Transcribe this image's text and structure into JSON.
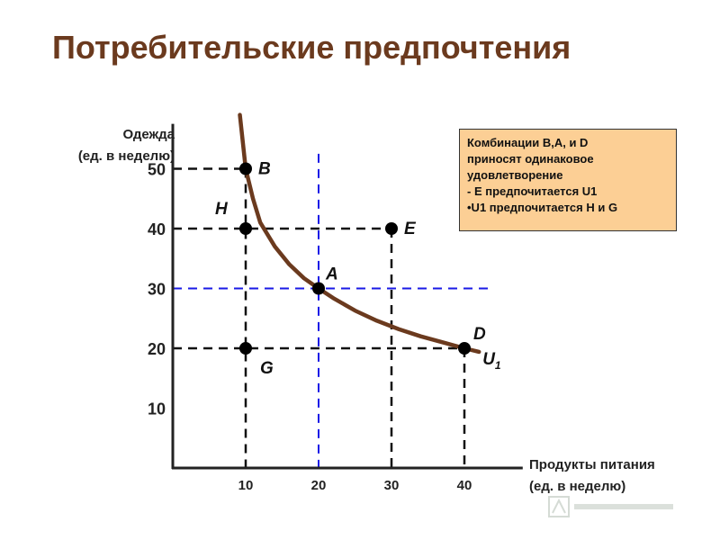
{
  "title": "Потребительские предпочтения",
  "chart_data": {
    "type": "line",
    "ylabel_lines": [
      "Одежда",
      "(ед. в неделю)"
    ],
    "xlabel_lines": [
      "Продукты питания",
      "(ед. в неделю)"
    ],
    "x_ticks": [
      10,
      20,
      30,
      40
    ],
    "y_ticks": [
      10,
      20,
      30,
      40,
      50
    ],
    "xlim": [
      0,
      50
    ],
    "ylim": [
      0,
      60
    ],
    "curve": {
      "name": "U",
      "name_sub": "1",
      "points": [
        [
          9.2,
          59
        ],
        [
          10,
          50
        ],
        [
          11,
          45
        ],
        [
          12,
          41
        ],
        [
          14,
          37
        ],
        [
          16,
          34
        ],
        [
          18,
          31.7
        ],
        [
          20,
          30
        ],
        [
          22,
          28.4
        ],
        [
          25,
          26.3
        ],
        [
          28,
          24.6
        ],
        [
          31,
          23.2
        ],
        [
          34,
          22
        ],
        [
          37,
          21
        ],
        [
          40,
          20
        ],
        [
          42,
          19.4
        ]
      ]
    },
    "points": [
      {
        "label": "B",
        "x": 10,
        "y": 50
      },
      {
        "label": "H",
        "x": 10,
        "y": 40
      },
      {
        "label": "E",
        "x": 30,
        "y": 40
      },
      {
        "label": "A",
        "x": 20,
        "y": 30
      },
      {
        "label": "D",
        "x": 40,
        "y": 20
      },
      {
        "label": "G",
        "x": 10,
        "y": 20
      }
    ],
    "colors": {
      "curve": "#6b3a1e",
      "axes": "#222222",
      "guides_black": "#111111",
      "guides_blue": "#1a1ae6",
      "legend_bg": "#fccf95"
    },
    "legend": {
      "placement": "top-right",
      "lines": [
        "Комбинации B,A, и D",
        "приносят одинаковое",
        "удовлетворение",
        "- E предпочитается U1",
        "•U1 предпочитается H и G"
      ]
    }
  }
}
